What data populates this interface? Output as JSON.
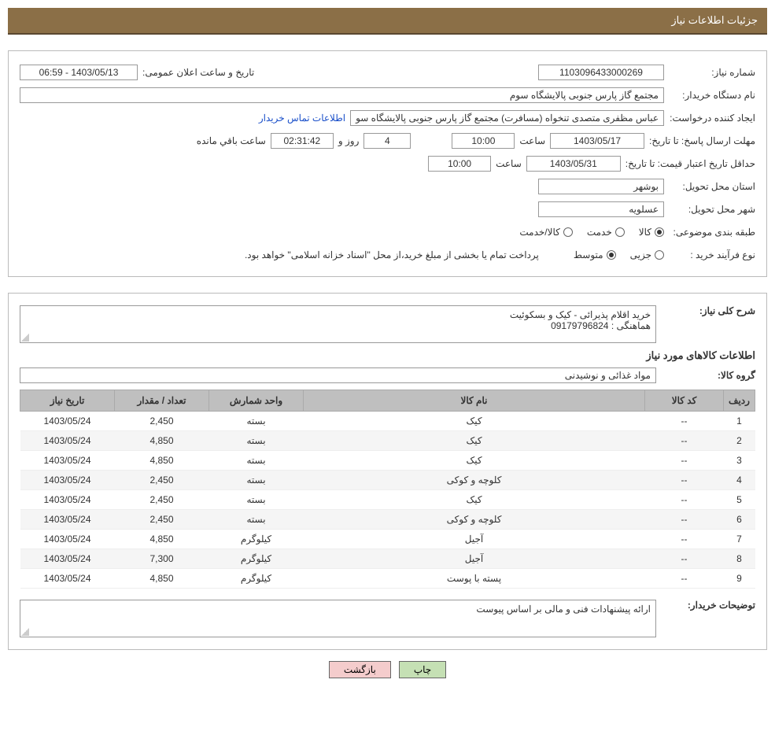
{
  "header": {
    "title": "جزئیات اطلاعات نیاز"
  },
  "panel1": {
    "need_no_label": "شماره نیاز:",
    "need_no": "1103096433000269",
    "announce_label": "تاریخ و ساعت اعلان عمومی:",
    "announce_value": "1403/05/13 - 06:59",
    "buyer_label": "نام دستگاه خریدار:",
    "buyer_value": "مجتمع گاز پارس جنوبی  پالایشگاه سوم",
    "requester_label": "ایجاد کننده درخواست:",
    "requester_value": "عباس مظفری متصدی تنخواه (مسافرت) مجتمع گاز پارس جنوبی  پالایشگاه سو",
    "contact_link": "اطلاعات تماس خریدار",
    "deadline_label": "مهلت ارسال پاسخ:",
    "deadline_date_label": "تا تاریخ:",
    "deadline_date": "1403/05/17",
    "time_label": "ساعت",
    "deadline_time": "10:00",
    "days_value": "4",
    "days_and": "روز و",
    "counter": "02:31:42",
    "remain_label": "ساعت باقي مانده",
    "minprice_label": "حداقل تاریخ اعتبار قیمت:",
    "minprice_date_label": "تا تاریخ:",
    "minprice_date": "1403/05/31",
    "minprice_time": "10:00",
    "province_label": "استان محل تحویل:",
    "province_value": "بوشهر",
    "city_label": "شهر محل تحویل:",
    "city_value": "عسلویه",
    "category_label": "طبقه بندی موضوعی:",
    "category_opts": {
      "goods": "کالا",
      "service": "خدمت",
      "goods_service": "کالا/خدمت"
    },
    "process_label": "نوع فرآیند خرید :",
    "process_opts": {
      "partial": "جزیی",
      "medium": "متوسط"
    },
    "process_note": "پرداخت تمام یا بخشی از مبلغ خرید،از محل \"اسناد خزانه اسلامی\" خواهد بود."
  },
  "panel2": {
    "desc_label": "شرح کلی نیاز:",
    "desc_value": "خرید اقلام پذیرائی - کیک و بسکوئیت\nهماهنگی : 09179796824",
    "items_section_title": "اطلاعات کالاهای مورد نیاز",
    "group_label": "گروه کالا:",
    "group_value": "مواد غذائی و نوشیدنی",
    "table": {
      "headers": [
        "ردیف",
        "کد کالا",
        "نام کالا",
        "واحد شمارش",
        "تعداد / مقدار",
        "تاریخ نیاز"
      ],
      "rows": [
        [
          "1",
          "--",
          "کیک",
          "بسته",
          "2,450",
          "1403/05/24"
        ],
        [
          "2",
          "--",
          "کیک",
          "بسته",
          "4,850",
          "1403/05/24"
        ],
        [
          "3",
          "--",
          "کیک",
          "بسته",
          "4,850",
          "1403/05/24"
        ],
        [
          "4",
          "--",
          "کلوچه و کوکی",
          "بسته",
          "2,450",
          "1403/05/24"
        ],
        [
          "5",
          "--",
          "کیک",
          "بسته",
          "2,450",
          "1403/05/24"
        ],
        [
          "6",
          "--",
          "کلوچه و کوکی",
          "بسته",
          "2,450",
          "1403/05/24"
        ],
        [
          "7",
          "--",
          "آجیل",
          "کیلوگرم",
          "4,850",
          "1403/05/24"
        ],
        [
          "8",
          "--",
          "آجیل",
          "کیلوگرم",
          "7,300",
          "1403/05/24"
        ],
        [
          "9",
          "--",
          "پسته با پوست",
          "کیلوگرم",
          "4,850",
          "1403/05/24"
        ]
      ]
    },
    "buyer_notes_label": "توضیحات خریدار:",
    "buyer_notes_value": "ارائه پیشنهادات فنی و مالی بر اساس پیوست"
  },
  "buttons": {
    "print": "چاپ",
    "back": "بازگشت"
  }
}
